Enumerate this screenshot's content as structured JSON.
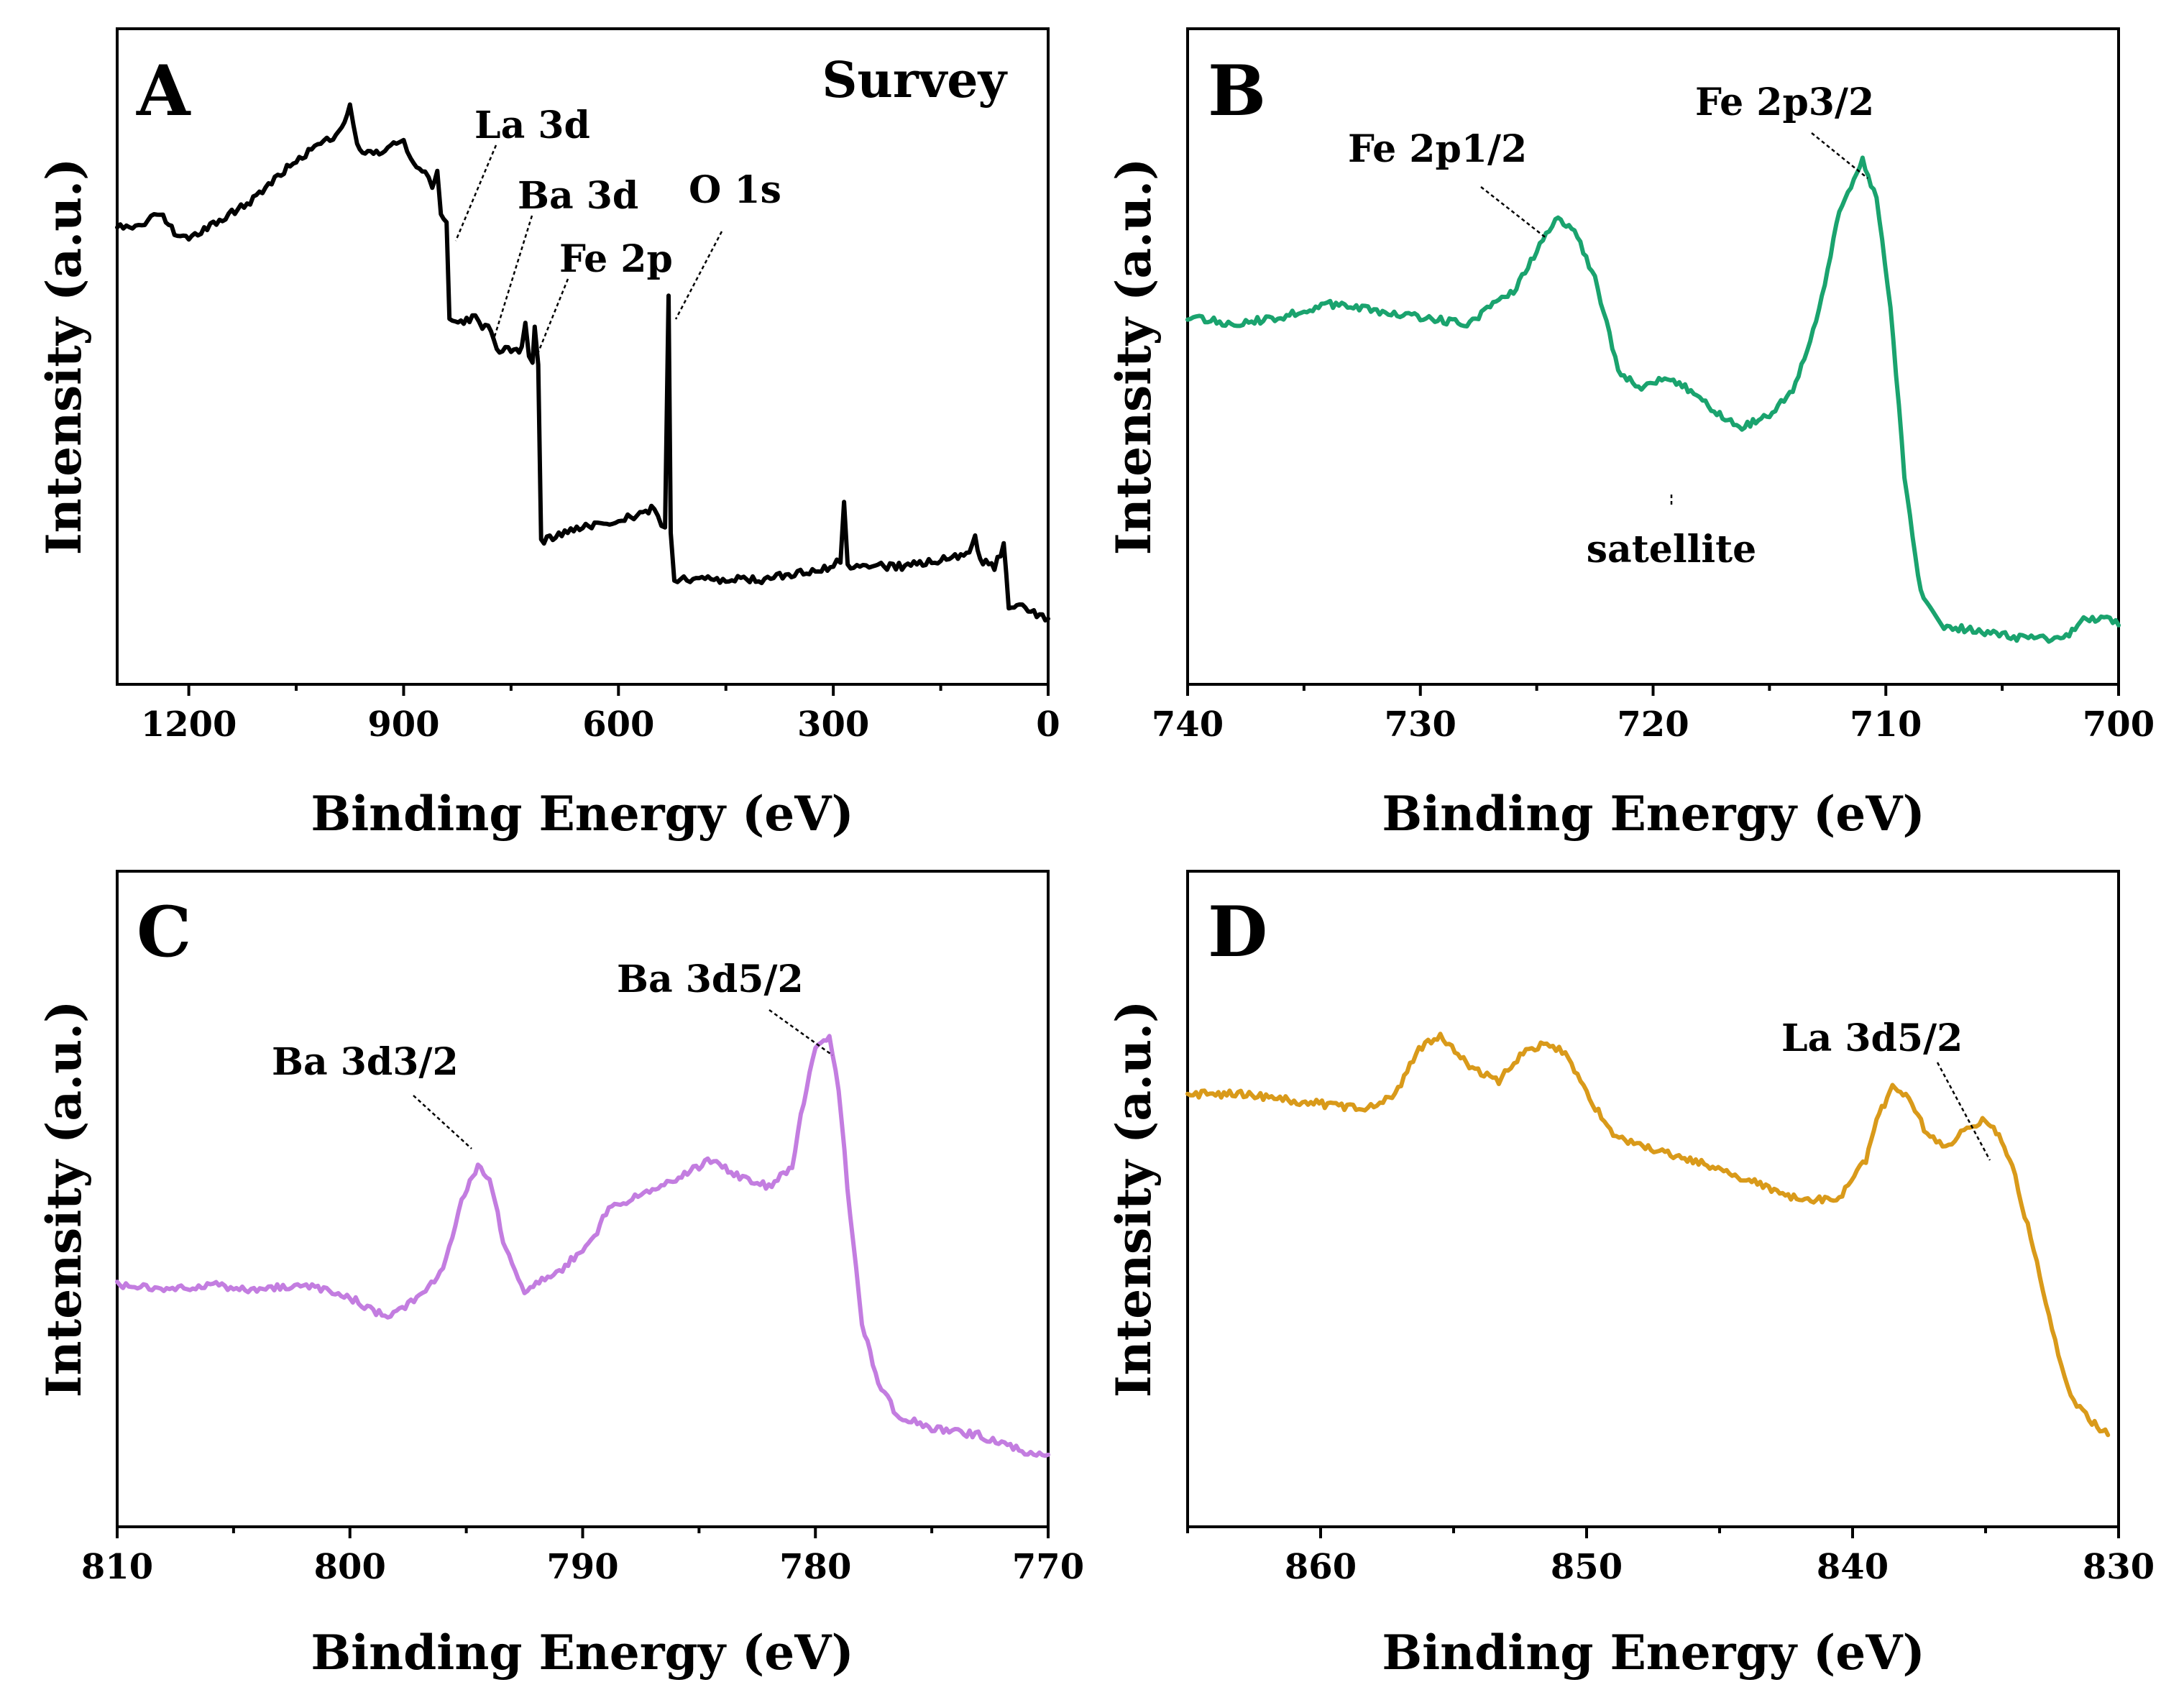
{
  "chart_data": [
    {
      "type": "line",
      "panel": "A",
      "subtitle": "Survey",
      "xlabel": "Binding Energy (eV)",
      "ylabel": "Intensity (a.u.)",
      "xlim": [
        1300,
        0
      ],
      "ylim": [
        0,
        100
      ],
      "xticks": [
        1200,
        900,
        600,
        300,
        0
      ],
      "color": "#000000",
      "series": [
        {
          "name": "Survey",
          "points": [
            [
              1300,
              70
            ],
            [
              1270,
              70
            ],
            [
              1240,
              72
            ],
            [
              1220,
              69
            ],
            [
              1200,
              68
            ],
            [
              1170,
              70
            ],
            [
              1140,
              72
            ],
            [
              1110,
              74
            ],
            [
              1080,
              77
            ],
            [
              1050,
              80
            ],
            [
              1020,
              82
            ],
            [
              990,
              84
            ],
            [
              975,
              88
            ],
            [
              965,
              82
            ],
            [
              950,
              81
            ],
            [
              930,
              81
            ],
            [
              910,
              83
            ],
            [
              900,
              83
            ],
            [
              890,
              80
            ],
            [
              870,
              78
            ],
            [
              860,
              76
            ],
            [
              853,
              78
            ],
            [
              848,
              72
            ],
            [
              840,
              70
            ],
            [
              836,
              56
            ],
            [
              820,
              55
            ],
            [
              800,
              56
            ],
            [
              790,
              54
            ],
            [
              782,
              55
            ],
            [
              770,
              51
            ],
            [
              750,
              51
            ],
            [
              735,
              51
            ],
            [
              730,
              55
            ],
            [
              725,
              50
            ],
            [
              720,
              49
            ],
            [
              717,
              55
            ],
            [
              712,
              49
            ],
            [
              708,
              22
            ],
            [
              700,
              22
            ],
            [
              650,
              24
            ],
            [
              600,
              25
            ],
            [
              570,
              26
            ],
            [
              550,
              27
            ],
            [
              540,
              24
            ],
            [
              535,
              24
            ],
            [
              530,
              59
            ],
            [
              527,
              23
            ],
            [
              522,
              16
            ],
            [
              500,
              16
            ],
            [
              450,
              16
            ],
            [
              400,
              16
            ],
            [
              350,
              17
            ],
            [
              300,
              18
            ],
            [
              290,
              19
            ],
            [
              285,
              28
            ],
            [
              280,
              18
            ],
            [
              250,
              18
            ],
            [
              200,
              18
            ],
            [
              150,
              19
            ],
            [
              110,
              20
            ],
            [
              102,
              23
            ],
            [
              95,
              19
            ],
            [
              75,
              18
            ],
            [
              62,
              21
            ],
            [
              55,
              12
            ],
            [
              40,
              12
            ],
            [
              20,
              11
            ],
            [
              0,
              10
            ]
          ]
        }
      ],
      "annotations": [
        {
          "label": "La 3d",
          "x": 840
        },
        {
          "label": "Ba 3d",
          "x": 780
        },
        {
          "label": "Fe 2p",
          "x": 712
        },
        {
          "label": "O 1s",
          "x": 530
        }
      ]
    },
    {
      "type": "line",
      "panel": "B",
      "xlabel": "Binding Energy (eV)",
      "ylabel": "Intensity (a.u.)",
      "xlim": [
        740,
        700
      ],
      "ylim": [
        0,
        100
      ],
      "xticks": [
        740,
        730,
        720,
        710,
        700
      ],
      "color": "#1aa36e",
      "series": [
        {
          "name": "Fe 2p",
          "points": [
            [
              740,
              56
            ],
            [
              738,
              55
            ],
            [
              736,
              56
            ],
            [
              734,
              58
            ],
            [
              732,
              57
            ],
            [
              730,
              56
            ],
            [
              728,
              55
            ],
            [
              726,
              60
            ],
            [
              725,
              66
            ],
            [
              724.2,
              71
            ],
            [
              723.5,
              70
            ],
            [
              722.5,
              62
            ],
            [
              721.5,
              48
            ],
            [
              720.5,
              45
            ],
            [
              719.5,
              47
            ],
            [
              718.5,
              45
            ],
            [
              717.5,
              42
            ],
            [
              716.3,
              39
            ],
            [
              715,
              41
            ],
            [
              714,
              45
            ],
            [
              713,
              55
            ],
            [
              712,
              72
            ],
            [
              711,
              80
            ],
            [
              710.4,
              74
            ],
            [
              709.8,
              58
            ],
            [
              709.2,
              32
            ],
            [
              708.5,
              14
            ],
            [
              707.5,
              9
            ],
            [
              706,
              8
            ],
            [
              704,
              7
            ],
            [
              702.5,
              7
            ],
            [
              702,
              8
            ],
            [
              701.5,
              10
            ],
            [
              700.5,
              10
            ],
            [
              700,
              9
            ]
          ]
        }
      ],
      "annotations": [
        {
          "label": "Fe 2p1/2",
          "x": 724.2
        },
        {
          "label": "Fe 2p3/2",
          "x": 711
        },
        {
          "label": "satellite",
          "x": 719.5
        }
      ]
    },
    {
      "type": "line",
      "panel": "C",
      "xlabel": "Binding Energy (eV)",
      "ylabel": "Intensity (a.u.)",
      "xlim": [
        810,
        770
      ],
      "ylim": [
        0,
        100
      ],
      "xticks": [
        810,
        800,
        790,
        780,
        770
      ],
      "color": "#c37de0",
      "series": [
        {
          "name": "Ba 3d",
          "points": [
            [
              810,
              37
            ],
            [
              808,
              36
            ],
            [
              806,
              37
            ],
            [
              804,
              36
            ],
            [
              802,
              37
            ],
            [
              800,
              35
            ],
            [
              798.5,
              32
            ],
            [
              797,
              35
            ],
            [
              796,
              39
            ],
            [
              795.2,
              50
            ],
            [
              794.5,
              55
            ],
            [
              794,
              53
            ],
            [
              793.3,
              42
            ],
            [
              792.5,
              36
            ],
            [
              791,
              39
            ],
            [
              789.5,
              44
            ],
            [
              789,
              48
            ],
            [
              788,
              50
            ],
            [
              786,
              53
            ],
            [
              784.5,
              56
            ],
            [
              783,
              53
            ],
            [
              782,
              52
            ],
            [
              781,
              55
            ],
            [
              780.5,
              65
            ],
            [
              780,
              73
            ],
            [
              779.4,
              75
            ],
            [
              779,
              67
            ],
            [
              778.5,
              47
            ],
            [
              778,
              31
            ],
            [
              777.3,
              22
            ],
            [
              776.5,
              17
            ],
            [
              775,
              15
            ],
            [
              773,
              14
            ],
            [
              771.5,
              12
            ],
            [
              770.5,
              11
            ],
            [
              770,
              11
            ]
          ]
        }
      ],
      "annotations": [
        {
          "label": "Ba 3d3/2",
          "x": 794.5
        },
        {
          "label": "Ba 3d5/2",
          "x": 779.4
        }
      ]
    },
    {
      "type": "line",
      "panel": "D",
      "xlabel": "Binding Energy (eV)",
      "ylabel": "Intensity (a.u.)",
      "xlim": [
        865,
        830
      ],
      "ylim": [
        0,
        100
      ],
      "xticks": [
        860,
        850,
        840,
        830
      ],
      "color": "#d99a1a",
      "series": [
        {
          "name": "La 3d",
          "points": [
            [
              865,
              66
            ],
            [
              863,
              66
            ],
            [
              861,
              65
            ],
            [
              859,
              64
            ],
            [
              858,
              64
            ],
            [
              857.2,
              66
            ],
            [
              856.3,
              73
            ],
            [
              855.5,
              75
            ],
            [
              854.3,
              70
            ],
            [
              853.3,
              68
            ],
            [
              852.5,
              72
            ],
            [
              851.5,
              74
            ],
            [
              850.8,
              72
            ],
            [
              850,
              66
            ],
            [
              849,
              60
            ],
            [
              848,
              58
            ],
            [
              846,
              56
            ],
            [
              844,
              53
            ],
            [
              842,
              50
            ],
            [
              840.5,
              50
            ],
            [
              839.5,
              56
            ],
            [
              839,
              63
            ],
            [
              838.5,
              67
            ],
            [
              838,
              66
            ],
            [
              837.2,
              60
            ],
            [
              836.5,
              58
            ],
            [
              835.7,
              61
            ],
            [
              835,
              62
            ],
            [
              834.5,
              60
            ],
            [
              834,
              55
            ],
            [
              833.3,
              44
            ],
            [
              832.5,
              30
            ],
            [
              831.8,
              20
            ],
            [
              831,
              16
            ],
            [
              830.4,
              14
            ]
          ]
        }
      ],
      "annotations": [
        {
          "label": "La 3d5/2",
          "x": 835.2
        }
      ]
    }
  ]
}
